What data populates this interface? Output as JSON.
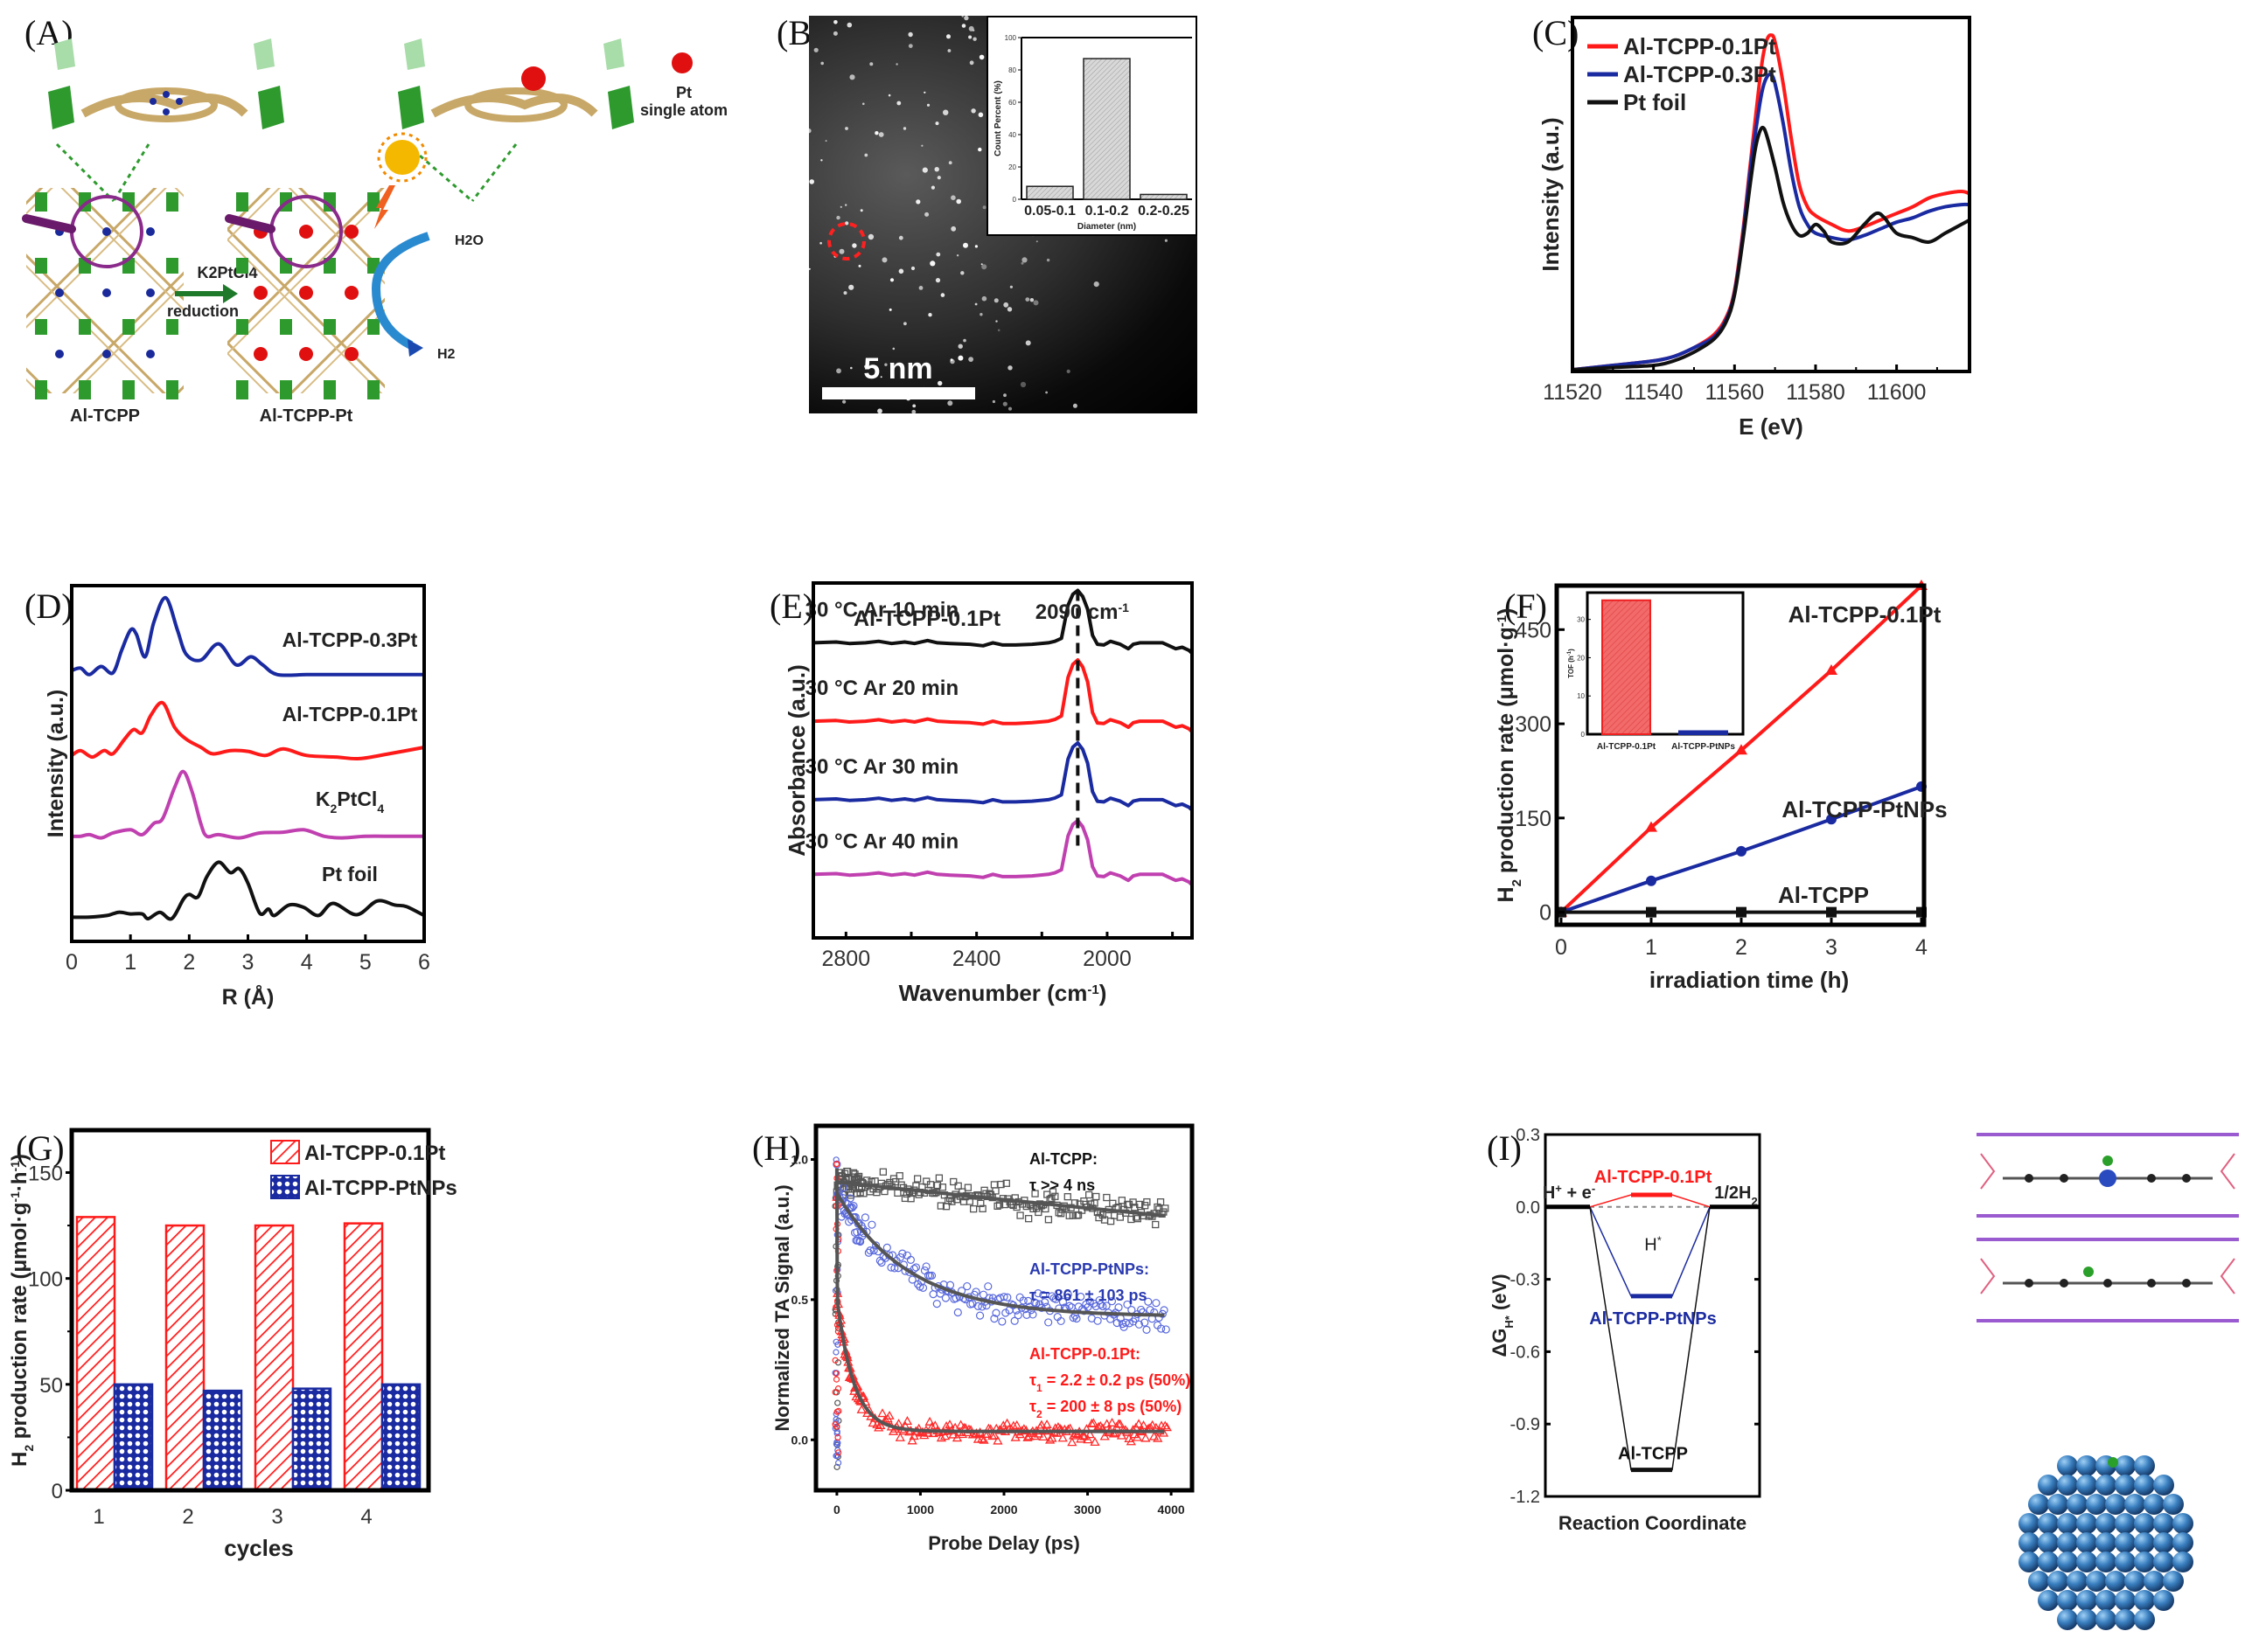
{
  "panel_labels": {
    "A": "(A)",
    "B": "(B)",
    "C": "(C)",
    "D": "(D)",
    "E": "(E)",
    "F": "(F)",
    "G": "(G)",
    "H": "(H)",
    "I": "(I)"
  },
  "panel_a": {
    "left_label": "Al-TCPP",
    "right_label": "Al-TCPP-Pt",
    "arrow_top": "K2PtCl4",
    "arrow_bottom": "reduction",
    "pt_label_1": "Pt",
    "pt_label_2": "single atom",
    "h2o_label": "H2O",
    "h2_label": "H2",
    "colors": {
      "node": "#2e9a2e",
      "linker": "#c8a868",
      "nitrogen": "#1a2a9a",
      "pt": "#e01010",
      "magnifier": "#8a2a8a"
    }
  },
  "panel_b": {
    "scale_bar_label": "5 nm"
  },
  "chart_data": [
    {
      "id": "B-inset",
      "type": "bar",
      "title": "",
      "xlabel": "Diameter (nm)",
      "ylabel": "Count Percent (%)",
      "categories": [
        "0.05-0.1",
        "0.1-0.2",
        "0.2-0.25"
      ],
      "values": [
        8,
        87,
        3
      ],
      "ylim": [
        0,
        100
      ],
      "yticks": [
        0,
        20,
        40,
        60,
        80,
        100
      ],
      "bar_color": "#d0d0d0",
      "legend": "none"
    },
    {
      "id": "C",
      "type": "line",
      "xlabel": "E (eV)",
      "ylabel": "Intensity (a.u.)",
      "xlim": [
        11520,
        11618
      ],
      "xticks": [
        11520,
        11540,
        11560,
        11580,
        11600
      ],
      "ylim": [
        0,
        1.55
      ],
      "legend": "top-left",
      "series": [
        {
          "name": "Al-TCPP-0.1Pt",
          "color": "#ff1a1a",
          "x": [
            11520,
            11530,
            11540,
            11545,
            11550,
            11555,
            11558,
            11560,
            11562,
            11564,
            11566,
            11567,
            11568,
            11569,
            11570,
            11572,
            11574,
            11576,
            11578,
            11580,
            11584,
            11588,
            11592,
            11596,
            11600,
            11604,
            11608,
            11612,
            11616,
            11618
          ],
          "y": [
            0.0,
            0.02,
            0.04,
            0.06,
            0.1,
            0.16,
            0.24,
            0.36,
            0.62,
            0.95,
            1.28,
            1.42,
            1.5,
            1.52,
            1.49,
            1.3,
            1.05,
            0.84,
            0.74,
            0.7,
            0.66,
            0.63,
            0.65,
            0.68,
            0.71,
            0.74,
            0.78,
            0.8,
            0.81,
            0.8
          ]
        },
        {
          "name": "Al-TCPP-0.3Pt",
          "color": "#1a2aa0",
          "x": [
            11520,
            11530,
            11540,
            11545,
            11550,
            11555,
            11558,
            11560,
            11562,
            11564,
            11566,
            11567,
            11568,
            11569,
            11570,
            11572,
            11574,
            11576,
            11578,
            11580,
            11584,
            11588,
            11592,
            11596,
            11600,
            11604,
            11608,
            11612,
            11616,
            11618
          ],
          "y": [
            0.0,
            0.02,
            0.04,
            0.06,
            0.1,
            0.15,
            0.23,
            0.35,
            0.6,
            0.92,
            1.18,
            1.28,
            1.33,
            1.34,
            1.3,
            1.12,
            0.9,
            0.74,
            0.66,
            0.62,
            0.6,
            0.59,
            0.61,
            0.64,
            0.67,
            0.69,
            0.72,
            0.74,
            0.75,
            0.75
          ]
        },
        {
          "name": "Pt foil",
          "color": "#111111",
          "x": [
            11520,
            11530,
            11540,
            11545,
            11550,
            11555,
            11558,
            11560,
            11562,
            11564,
            11565,
            11566,
            11567,
            11568,
            11570,
            11572,
            11574,
            11576,
            11578,
            11580,
            11582,
            11584,
            11588,
            11592,
            11595,
            11597,
            11600,
            11604,
            11608,
            11612,
            11616,
            11618
          ],
          "y": [
            0.0,
            0.01,
            0.02,
            0.04,
            0.08,
            0.14,
            0.22,
            0.34,
            0.58,
            0.86,
            0.99,
            1.07,
            1.1,
            1.06,
            0.92,
            0.76,
            0.66,
            0.61,
            0.62,
            0.66,
            0.63,
            0.58,
            0.58,
            0.66,
            0.71,
            0.69,
            0.62,
            0.6,
            0.58,
            0.62,
            0.66,
            0.68
          ]
        }
      ]
    },
    {
      "id": "D",
      "type": "line",
      "xlabel": "R (Å)",
      "ylabel": "Intensity (a.u.)",
      "xlim": [
        0,
        6
      ],
      "xticks": [
        0,
        1,
        2,
        3,
        4,
        5,
        6
      ],
      "legend": "inline-right",
      "series": [
        {
          "name": "Al-TCPP-0.3Pt",
          "color": "#1a2aa0",
          "offset": 3.0,
          "x": [
            0,
            0.15,
            0.3,
            0.5,
            0.7,
            0.85,
            1.0,
            1.1,
            1.25,
            1.4,
            1.6,
            1.8,
            1.95,
            2.2,
            2.5,
            2.8,
            3.05,
            3.25,
            3.5,
            4.0,
            4.5,
            5.0,
            5.5,
            6.0
          ],
          "y": [
            0.05,
            0.08,
            0.0,
            0.1,
            0.02,
            0.3,
            0.55,
            0.5,
            0.22,
            0.65,
            0.95,
            0.55,
            0.25,
            0.18,
            0.38,
            0.12,
            0.22,
            0.12,
            0.0,
            0.0,
            0.0,
            0.0,
            0.0,
            0.0
          ]
        },
        {
          "name": "Al-TCPP-0.1Pt",
          "color": "#ff1a1a",
          "offset": 2.0,
          "x": [
            0,
            0.15,
            0.35,
            0.55,
            0.7,
            0.9,
            1.05,
            1.2,
            1.35,
            1.55,
            1.75,
            1.95,
            2.2,
            2.4,
            2.7,
            3.0,
            3.3,
            3.6,
            4.0,
            4.5,
            4.9,
            5.4,
            6.0
          ],
          "y": [
            0.0,
            0.06,
            -0.02,
            0.06,
            0.02,
            0.2,
            0.32,
            0.28,
            0.5,
            0.65,
            0.35,
            0.2,
            0.1,
            0.02,
            0.06,
            0.05,
            0.0,
            0.08,
            0.0,
            -0.02,
            -0.04,
            0.02,
            0.1
          ]
        },
        {
          "name": "K2PtCl4",
          "color": "#c040b0",
          "offset": 1.0,
          "x": [
            0,
            0.15,
            0.3,
            0.5,
            0.7,
            1.0,
            1.2,
            1.4,
            1.55,
            1.75,
            1.9,
            2.05,
            2.2,
            2.3,
            2.5,
            2.85,
            3.2,
            3.6,
            3.95,
            4.3,
            4.6,
            5.0,
            5.5,
            6.0
          ],
          "y": [
            0.0,
            0.0,
            0.02,
            -0.02,
            0.04,
            0.08,
            0.02,
            0.16,
            0.22,
            0.6,
            0.8,
            0.55,
            0.15,
            0.0,
            0.02,
            -0.02,
            0.04,
            0.05,
            0.08,
            0.0,
            -0.02,
            0.0,
            0.0,
            0.0
          ]
        },
        {
          "name": "Pt foil",
          "color": "#111111",
          "offset": 0.0,
          "x": [
            0,
            0.3,
            0.6,
            0.8,
            1.0,
            1.2,
            1.3,
            1.5,
            1.7,
            1.9,
            2.0,
            2.15,
            2.3,
            2.5,
            2.7,
            2.85,
            3.0,
            3.2,
            3.35,
            3.45,
            3.7,
            3.95,
            4.2,
            4.45,
            4.85,
            5.2,
            5.5,
            5.7,
            6.0
          ],
          "y": [
            0.0,
            0.0,
            0.02,
            0.06,
            0.04,
            0.04,
            -0.02,
            0.06,
            -0.02,
            0.22,
            0.28,
            0.25,
            0.5,
            0.68,
            0.55,
            0.6,
            0.42,
            0.05,
            0.1,
            0.02,
            0.15,
            0.12,
            0.02,
            0.17,
            0.03,
            0.2,
            0.15,
            0.13,
            0.02
          ]
        }
      ]
    },
    {
      "id": "E",
      "type": "line",
      "title": "Al-TCPP-0.1Pt",
      "xlabel": "Wavenumber (cm-1)",
      "ylabel": "Absorbance (a.u.)",
      "xlim": [
        2900,
        1740
      ],
      "xticks": [
        2800,
        2400,
        2000
      ],
      "annotation": {
        "text": "2090 cm-1",
        "x": 2090
      },
      "legend": "inline-left",
      "series": [
        {
          "name": "30 °C Ar 10 min",
          "color": "#111111",
          "offset": 3
        },
        {
          "name": "30 °C Ar 20 min",
          "color": "#ff1a1a",
          "offset": 2
        },
        {
          "name": "30 °C Ar 30 min",
          "color": "#1a2aa0",
          "offset": 1
        },
        {
          "name": "30 °C Ar 40 min",
          "color": "#c040b0",
          "offset": 0
        }
      ],
      "shared_profile": {
        "x": [
          2900,
          2830,
          2790,
          2740,
          2700,
          2660,
          2620,
          2590,
          2550,
          2520,
          2480,
          2420,
          2380,
          2350,
          2320,
          2280,
          2230,
          2180,
          2160,
          2140,
          2120,
          2105,
          2090,
          2075,
          2060,
          2045,
          2030,
          2010,
          1990,
          1960,
          1935,
          1920,
          1900,
          1870,
          1830,
          1810,
          1790,
          1770,
          1750,
          1740
        ],
        "y": [
          0.0,
          0.01,
          -0.01,
          0.0,
          0.02,
          -0.01,
          0.01,
          -0.01,
          0.03,
          0.0,
          -0.01,
          -0.02,
          -0.04,
          0.0,
          -0.03,
          -0.03,
          -0.02,
          0.0,
          0.02,
          0.06,
          0.5,
          0.65,
          0.7,
          0.62,
          0.45,
          0.1,
          -0.02,
          -0.03,
          0.02,
          -0.02,
          -0.08,
          -0.02,
          0.0,
          0.0,
          0.0,
          -0.04,
          -0.08,
          -0.06,
          -0.1,
          -0.14
        ]
      },
      "peak_heights": [
        0.7,
        0.82,
        0.76,
        0.72
      ]
    },
    {
      "id": "F",
      "type": "line",
      "xlabel": "irradiation time (h)",
      "ylabel": "H2 production rate (μmol·g-1)",
      "xlim": [
        0,
        4
      ],
      "ylim": [
        -20,
        520
      ],
      "xticks": [
        0,
        1,
        2,
        3,
        4
      ],
      "yticks": [
        0,
        150,
        300,
        450
      ],
      "legend": "inline-right",
      "series": [
        {
          "name": "Al-TCPP-0.1Pt",
          "color": "#ff1a1a",
          "marker": "triangle",
          "x": [
            0,
            1,
            2,
            3,
            4
          ],
          "y": [
            0,
            135,
            258,
            385,
            520
          ]
        },
        {
          "name": "Al-TCPP-PtNPs",
          "color": "#1a2aa0",
          "marker": "circle",
          "x": [
            0,
            1,
            2,
            3,
            4
          ],
          "y": [
            0,
            50,
            97,
            148,
            200
          ]
        },
        {
          "name": "Al-TCPP",
          "color": "#111111",
          "marker": "square",
          "x": [
            0,
            1,
            2,
            3,
            4
          ],
          "y": [
            0,
            0,
            0,
            0,
            0
          ]
        }
      ],
      "inset": {
        "type": "bar",
        "ylabel": "TOF (h-1)",
        "categories": [
          "Al-TCPP-0.1Pt",
          "Al-TCPP-PtNPs"
        ],
        "values": [
          35,
          0.8
        ],
        "ylim": [
          0,
          37
        ],
        "yticks": [
          0,
          10,
          20,
          30
        ],
        "colors": [
          "#f06060",
          "#1a2aa0"
        ]
      }
    },
    {
      "id": "G",
      "type": "bar",
      "xlabel": "cycles",
      "ylabel": "H2 production rate (μmol·g-1·h-1)",
      "categories": [
        "1",
        "2",
        "3",
        "4"
      ],
      "ylim": [
        0,
        170
      ],
      "yticks": [
        0,
        50,
        100,
        150
      ],
      "legend": "top-right",
      "series": [
        {
          "name": "Al-TCPP-0.1Pt",
          "color": "#ff1a1a",
          "pattern": "hatch",
          "values": [
            129,
            125,
            125,
            126
          ]
        },
        {
          "name": "Al-TCPP-PtNPs",
          "color": "#1a2aa0",
          "pattern": "crosshatch",
          "values": [
            50,
            47,
            48,
            50
          ]
        }
      ]
    },
    {
      "id": "H",
      "type": "scatter",
      "xlabel": "Probe Delay (ps)",
      "ylabel": "Normalized TA Signal (a.u.)",
      "xlim": [
        -250,
        4250
      ],
      "ylim": [
        -0.18,
        1.12
      ],
      "xticks": [
        0,
        1000,
        2000,
        3000,
        4000
      ],
      "yticks": [
        0.0,
        0.5,
        1.0
      ],
      "legend": "inline-right",
      "series": [
        {
          "name": "Al-TCPP",
          "color": "#555555",
          "marker": "square",
          "fit": {
            "type": "exp",
            "A": 0.92,
            "tau": 28000,
            "c": 0.0
          },
          "noise": 0.07,
          "annot": [
            "Al-TCPP:",
            "τ >> 4 ns"
          ]
        },
        {
          "name": "Al-TCPP-PtNPs",
          "color": "#5a6adc",
          "marker": "circle",
          "fit": {
            "type": "exp",
            "A": 0.44,
            "tau": 861,
            "c": 0.44
          },
          "noise": 0.09,
          "annot": [
            "Al-TCPP-PtNPs:",
            "τ = 861 ± 103 ps"
          ]
        },
        {
          "name": "Al-TCPP-0.1Pt",
          "color": "#ff2a2a",
          "marker": "triangle",
          "fit": {
            "type": "biexp",
            "A1": 0.48,
            "tau1": 2.2,
            "A2": 0.48,
            "tau2": 200,
            "c": 0.03
          },
          "noise": 0.05,
          "annot": [
            "Al-TCPP-0.1Pt:",
            "τ1 = 2.2 ± 0.2 ps (50%)",
            "τ2 = 200 ± 8 ps (50%)"
          ]
        }
      ]
    },
    {
      "id": "I",
      "type": "line",
      "xlabel": "Reaction Coordinate",
      "ylabel": "ΔGH* (eV)",
      "ylim": [
        -1.2,
        0.3
      ],
      "yticks": [
        0.3,
        0.0,
        -0.3,
        -0.6,
        -0.9,
        -1.2
      ],
      "states": [
        "H+ + e-",
        "H*",
        "1/2H2"
      ],
      "series": [
        {
          "name": "Al-TCPP-0.1Pt",
          "color": "#ff1a1a",
          "values": [
            0.0,
            0.05,
            0.0
          ]
        },
        {
          "name": "Al-TCPP-PtNPs",
          "color": "#1a2aa0",
          "values": [
            0.0,
            -0.37,
            0.0
          ]
        },
        {
          "name": "Al-TCPP",
          "color": "#111111",
          "values": [
            0.0,
            -1.09,
            0.0
          ]
        }
      ]
    }
  ],
  "panel_i_images": {
    "top_caption": "",
    "cluster_color": "#3a7fc0",
    "adsorbate_color": "#2aa02a"
  }
}
